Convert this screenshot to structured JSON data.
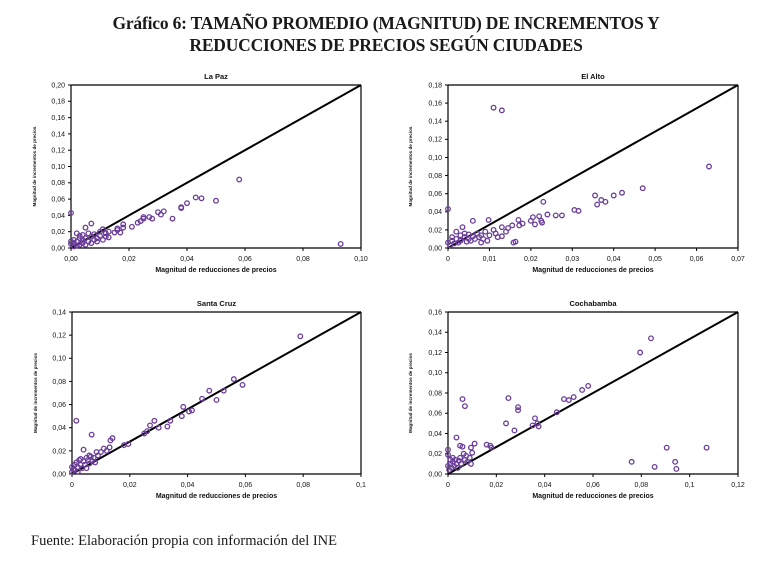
{
  "figure": {
    "title_line1": "Gráfico 6: TAMAÑO PROMEDIO (MAGNITUD) DE INCREMENTOS Y",
    "title_line2": "REDUCCIONES DE PRECIOS SEGÚN CIUDADES",
    "source": "Fuente: Elaboración propia con información del INE",
    "marker_color": "#6a3d9a",
    "line_color": "#000000"
  },
  "chart_data": [
    {
      "type": "scatter",
      "title": "La Paz",
      "xlabel": "Magnitud de reducciones de  precios",
      "ylabel": "Magnitud de incrementos de precios",
      "xlim": [
        0,
        0.1
      ],
      "ylim": [
        0,
        0.2
      ],
      "xticks": [
        "0,00",
        "0,02",
        "0,04",
        "0,06",
        "0,08",
        "0,10"
      ],
      "xtick_values": [
        0,
        0.02,
        0.04,
        0.06,
        0.08,
        0.1
      ],
      "yticks": [
        "0,00",
        "0,02",
        "0,04",
        "0,06",
        "0,08",
        "0,10",
        "0,12",
        "0,14",
        "0,16",
        "0,18",
        "0,20"
      ],
      "ytick_values": [
        0,
        0.02,
        0.04,
        0.06,
        0.08,
        0.1,
        0.12,
        0.14,
        0.16,
        0.18,
        0.2
      ],
      "reference_line": {
        "from": [
          0,
          0
        ],
        "to": [
          0.1,
          0.2
        ]
      },
      "grid": false,
      "points": [
        [
          0.0,
          0.043
        ],
        [
          0.0,
          0.005
        ],
        [
          0.0,
          0.008
        ],
        [
          0.001,
          0.002
        ],
        [
          0.001,
          0.006
        ],
        [
          0.001,
          0.01
        ],
        [
          0.002,
          0.003
        ],
        [
          0.002,
          0.008
        ],
        [
          0.002,
          0.018
        ],
        [
          0.003,
          0.004
        ],
        [
          0.003,
          0.012
        ],
        [
          0.003,
          0.015
        ],
        [
          0.004,
          0.006
        ],
        [
          0.004,
          0.01
        ],
        [
          0.004,
          0.016
        ],
        [
          0.005,
          0.025
        ],
        [
          0.005,
          0.004
        ],
        [
          0.005,
          0.012
        ],
        [
          0.006,
          0.008
        ],
        [
          0.006,
          0.018
        ],
        [
          0.007,
          0.006
        ],
        [
          0.007,
          0.014
        ],
        [
          0.007,
          0.03
        ],
        [
          0.008,
          0.01
        ],
        [
          0.008,
          0.017
        ],
        [
          0.009,
          0.012
        ],
        [
          0.009,
          0.008
        ],
        [
          0.01,
          0.015
        ],
        [
          0.01,
          0.02
        ],
        [
          0.011,
          0.01
        ],
        [
          0.011,
          0.023
        ],
        [
          0.012,
          0.014
        ],
        [
          0.012,
          0.018
        ],
        [
          0.013,
          0.013
        ],
        [
          0.013,
          0.02
        ],
        [
          0.015,
          0.019
        ],
        [
          0.016,
          0.022
        ],
        [
          0.016,
          0.024
        ],
        [
          0.017,
          0.019
        ],
        [
          0.018,
          0.025
        ],
        [
          0.018,
          0.029
        ],
        [
          0.021,
          0.026
        ],
        [
          0.023,
          0.031
        ],
        [
          0.024,
          0.033
        ],
        [
          0.025,
          0.036
        ],
        [
          0.025,
          0.038
        ],
        [
          0.027,
          0.038
        ],
        [
          0.028,
          0.036
        ],
        [
          0.03,
          0.044
        ],
        [
          0.031,
          0.041
        ],
        [
          0.032,
          0.045
        ],
        [
          0.035,
          0.036
        ],
        [
          0.038,
          0.049
        ],
        [
          0.038,
          0.05
        ],
        [
          0.04,
          0.055
        ],
        [
          0.043,
          0.062
        ],
        [
          0.045,
          0.061
        ],
        [
          0.05,
          0.058
        ],
        [
          0.058,
          0.084
        ],
        [
          0.093,
          0.005
        ]
      ]
    },
    {
      "type": "scatter",
      "title": "El Alto",
      "xlabel": "Magnitud de reducciones de  precios",
      "ylabel": "Magnitud de incrementos de precios",
      "xlim": [
        0,
        0.07
      ],
      "ylim": [
        0,
        0.18
      ],
      "xticks": [
        "0",
        "0,01",
        "0,02",
        "0,03",
        "0,04",
        "0,05",
        "0,06",
        "0,07"
      ],
      "xtick_values": [
        0,
        0.01,
        0.02,
        0.03,
        0.04,
        0.05,
        0.06,
        0.07
      ],
      "yticks": [
        "0,00",
        "0,02",
        "0,04",
        "0,06",
        "0,08",
        "0,10",
        "0,12",
        "0,14",
        "0,16",
        "0,18"
      ],
      "ytick_values": [
        0,
        0.02,
        0.04,
        0.06,
        0.08,
        0.1,
        0.12,
        0.14,
        0.16,
        0.18
      ],
      "reference_line": {
        "from": [
          0,
          0
        ],
        "to": [
          0.07,
          0.18
        ]
      },
      "grid": false,
      "points": [
        [
          0.0,
          0.043
        ],
        [
          0.0,
          0.006
        ],
        [
          0.0005,
          0.003
        ],
        [
          0.001,
          0.008
        ],
        [
          0.001,
          0.012
        ],
        [
          0.0015,
          0.005
        ],
        [
          0.002,
          0.018
        ],
        [
          0.002,
          0.01
        ],
        [
          0.0025,
          0.006
        ],
        [
          0.003,
          0.014
        ],
        [
          0.003,
          0.008
        ],
        [
          0.0035,
          0.023
        ],
        [
          0.004,
          0.012
        ],
        [
          0.004,
          0.016
        ],
        [
          0.0045,
          0.007
        ],
        [
          0.005,
          0.01
        ],
        [
          0.005,
          0.015
        ],
        [
          0.0055,
          0.008
        ],
        [
          0.006,
          0.03
        ],
        [
          0.006,
          0.013
        ],
        [
          0.0065,
          0.01
        ],
        [
          0.007,
          0.016
        ],
        [
          0.0075,
          0.012
        ],
        [
          0.008,
          0.006
        ],
        [
          0.008,
          0.014
        ],
        [
          0.0085,
          0.01
        ],
        [
          0.009,
          0.018
        ],
        [
          0.0095,
          0.008
        ],
        [
          0.0098,
          0.031
        ],
        [
          0.01,
          0.014
        ],
        [
          0.011,
          0.155
        ],
        [
          0.011,
          0.02
        ],
        [
          0.0115,
          0.016
        ],
        [
          0.012,
          0.012
        ],
        [
          0.013,
          0.152
        ],
        [
          0.013,
          0.023
        ],
        [
          0.013,
          0.013
        ],
        [
          0.014,
          0.018
        ],
        [
          0.0145,
          0.022
        ],
        [
          0.0155,
          0.025
        ],
        [
          0.0158,
          0.006
        ],
        [
          0.0163,
          0.007
        ],
        [
          0.017,
          0.031
        ],
        [
          0.0172,
          0.025
        ],
        [
          0.018,
          0.027
        ],
        [
          0.02,
          0.03
        ],
        [
          0.0205,
          0.034
        ],
        [
          0.021,
          0.026
        ],
        [
          0.022,
          0.035
        ],
        [
          0.0225,
          0.03
        ],
        [
          0.0227,
          0.028
        ],
        [
          0.023,
          0.051
        ],
        [
          0.024,
          0.037
        ],
        [
          0.026,
          0.036
        ],
        [
          0.0275,
          0.036
        ],
        [
          0.0305,
          0.042
        ],
        [
          0.0315,
          0.041
        ],
        [
          0.0355,
          0.058
        ],
        [
          0.036,
          0.048
        ],
        [
          0.037,
          0.053
        ],
        [
          0.038,
          0.051
        ],
        [
          0.04,
          0.058
        ],
        [
          0.042,
          0.061
        ],
        [
          0.047,
          0.066
        ],
        [
          0.063,
          0.09
        ]
      ]
    },
    {
      "type": "scatter",
      "title": "Santa Cruz",
      "xlabel": "Magnitud de reducciones de  precios",
      "ylabel": "Magnitud de incrementos de precios",
      "xlim": [
        0,
        0.1
      ],
      "ylim": [
        0,
        0.14
      ],
      "xticks": [
        "0",
        "0,02",
        "0,04",
        "0,06",
        "0,08",
        "0,1"
      ],
      "xtick_values": [
        0,
        0.02,
        0.04,
        0.06,
        0.08,
        0.1
      ],
      "yticks": [
        "0,00",
        "0,02",
        "0,04",
        "0,06",
        "0,08",
        "0,10",
        "0,12",
        "0,14"
      ],
      "ytick_values": [
        0,
        0.02,
        0.04,
        0.06,
        0.08,
        0.1,
        0.12,
        0.14
      ],
      "reference_line": {
        "from": [
          0,
          0
        ],
        "to": [
          0.1,
          0.14
        ]
      },
      "grid": false,
      "points": [
        [
          0.0,
          0.006
        ],
        [
          0.0,
          0.002
        ],
        [
          0.0005,
          0.004
        ],
        [
          0.001,
          0.008
        ],
        [
          0.001,
          0.003
        ],
        [
          0.0015,
          0.046
        ],
        [
          0.0015,
          0.01
        ],
        [
          0.002,
          0.006
        ],
        [
          0.002,
          0.002
        ],
        [
          0.0025,
          0.012
        ],
        [
          0.003,
          0.008
        ],
        [
          0.003,
          0.013
        ],
        [
          0.0035,
          0.005
        ],
        [
          0.004,
          0.021
        ],
        [
          0.004,
          0.011
        ],
        [
          0.0045,
          0.008
        ],
        [
          0.005,
          0.014
        ],
        [
          0.005,
          0.005
        ],
        [
          0.0055,
          0.012
        ],
        [
          0.006,
          0.016
        ],
        [
          0.006,
          0.009
        ],
        [
          0.0065,
          0.015
        ],
        [
          0.0068,
          0.034
        ],
        [
          0.007,
          0.011
        ],
        [
          0.0075,
          0.014
        ],
        [
          0.008,
          0.01
        ],
        [
          0.0085,
          0.019
        ],
        [
          0.009,
          0.016
        ],
        [
          0.01,
          0.019
        ],
        [
          0.011,
          0.022
        ],
        [
          0.012,
          0.02
        ],
        [
          0.013,
          0.023
        ],
        [
          0.0133,
          0.029
        ],
        [
          0.014,
          0.031
        ],
        [
          0.018,
          0.025
        ],
        [
          0.0195,
          0.026
        ],
        [
          0.025,
          0.035
        ],
        [
          0.026,
          0.037
        ],
        [
          0.027,
          0.042
        ],
        [
          0.0285,
          0.046
        ],
        [
          0.03,
          0.04
        ],
        [
          0.033,
          0.041
        ],
        [
          0.034,
          0.046
        ],
        [
          0.038,
          0.05
        ],
        [
          0.0385,
          0.058
        ],
        [
          0.0405,
          0.054
        ],
        [
          0.0415,
          0.055
        ],
        [
          0.045,
          0.065
        ],
        [
          0.0475,
          0.072
        ],
        [
          0.05,
          0.064
        ],
        [
          0.0525,
          0.072
        ],
        [
          0.056,
          0.082
        ],
        [
          0.059,
          0.077
        ],
        [
          0.079,
          0.119
        ]
      ]
    },
    {
      "type": "scatter",
      "title": "Cochabamba",
      "xlabel": "Magnitud de reducciones de  precios",
      "ylabel": "Magnitud de incrementos de precios",
      "xlim": [
        0,
        0.12
      ],
      "ylim": [
        0,
        0.16
      ],
      "xticks": [
        "0",
        "0,02",
        "0,04",
        "0,06",
        "0,08",
        "0,1",
        "0,12"
      ],
      "xtick_values": [
        0,
        0.02,
        0.04,
        0.06,
        0.08,
        0.1,
        0.12
      ],
      "yticks": [
        "0,00",
        "0,02",
        "0,04",
        "0,06",
        "0,08",
        "0,10",
        "0,12",
        "0,14",
        "0,16"
      ],
      "ytick_values": [
        0,
        0.02,
        0.04,
        0.06,
        0.08,
        0.1,
        0.12,
        0.14,
        0.16
      ],
      "reference_line": {
        "from": [
          0,
          0
        ],
        "to": [
          0.12,
          0.16
        ]
      },
      "grid": false,
      "points": [
        [
          0.0,
          0.024
        ],
        [
          0.0,
          0.019
        ],
        [
          0.0,
          0.008
        ],
        [
          0.0005,
          0.004
        ],
        [
          0.001,
          0.014
        ],
        [
          0.001,
          0.01
        ],
        [
          0.0015,
          0.006
        ],
        [
          0.002,
          0.016
        ],
        [
          0.002,
          0.012
        ],
        [
          0.0025,
          0.008
        ],
        [
          0.003,
          0.014
        ],
        [
          0.0035,
          0.036
        ],
        [
          0.0035,
          0.01
        ],
        [
          0.004,
          0.006
        ],
        [
          0.0045,
          0.013
        ],
        [
          0.005,
          0.028
        ],
        [
          0.005,
          0.016
        ],
        [
          0.0055,
          0.01
        ],
        [
          0.006,
          0.027
        ],
        [
          0.006,
          0.074
        ],
        [
          0.0065,
          0.02
        ],
        [
          0.007,
          0.067
        ],
        [
          0.007,
          0.014
        ],
        [
          0.0075,
          0.018
        ],
        [
          0.008,
          0.012
        ],
        [
          0.009,
          0.016
        ],
        [
          0.0095,
          0.026
        ],
        [
          0.0095,
          0.01
        ],
        [
          0.01,
          0.021
        ],
        [
          0.011,
          0.03
        ],
        [
          0.016,
          0.029
        ],
        [
          0.0175,
          0.028
        ],
        [
          0.018,
          0.026
        ],
        [
          0.024,
          0.05
        ],
        [
          0.025,
          0.075
        ],
        [
          0.0275,
          0.043
        ],
        [
          0.029,
          0.066
        ],
        [
          0.029,
          0.063
        ],
        [
          0.035,
          0.048
        ],
        [
          0.036,
          0.055
        ],
        [
          0.037,
          0.05
        ],
        [
          0.0375,
          0.047
        ],
        [
          0.045,
          0.061
        ],
        [
          0.048,
          0.074
        ],
        [
          0.05,
          0.073
        ],
        [
          0.052,
          0.076
        ],
        [
          0.0555,
          0.083
        ],
        [
          0.058,
          0.087
        ],
        [
          0.076,
          0.012
        ],
        [
          0.0795,
          0.12
        ],
        [
          0.084,
          0.134
        ],
        [
          0.0855,
          0.007
        ],
        [
          0.0905,
          0.026
        ],
        [
          0.094,
          0.012
        ],
        [
          0.0945,
          0.005
        ],
        [
          0.107,
          0.026
        ]
      ]
    }
  ]
}
